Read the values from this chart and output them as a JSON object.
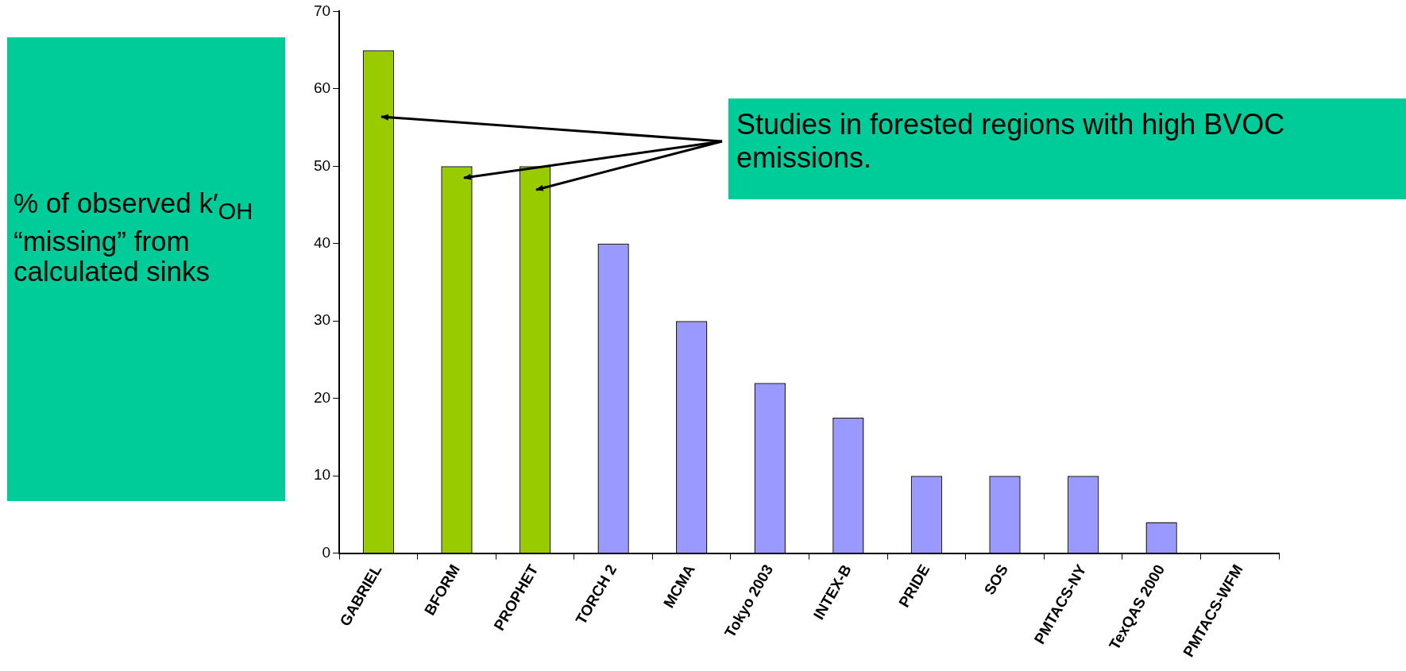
{
  "chart_data": {
    "type": "bar",
    "ylabel": "% of observed k′$_{OH}$ “missing” from calculated sinks",
    "categories": [
      "GABRIEL",
      "BFORM",
      "PROPHET",
      "TORCH 2",
      "MCMA",
      "Tokyo 2003",
      "INTEX-B",
      "PRIDE",
      "SOS",
      "PMTACS-NY",
      "TexQAS 2000",
      "PMTACS-WFM"
    ],
    "values": [
      65,
      50,
      50,
      40,
      30,
      22,
      17.5,
      10,
      10,
      10,
      4,
      0
    ],
    "colors": [
      "#99cc00",
      "#99cc00",
      "#99cc00",
      "#9999ff",
      "#9999ff",
      "#9999ff",
      "#9999ff",
      "#9999ff",
      "#9999ff",
      "#9999ff",
      "#9999ff",
      "#9999ff"
    ],
    "ylim": [
      0,
      70
    ],
    "yticks": [
      0,
      10,
      20,
      30,
      40,
      50,
      60,
      70
    ],
    "grid": false,
    "legend": false,
    "annotations": [
      "Studies in forested regions with high BVOC emissions."
    ]
  }
}
